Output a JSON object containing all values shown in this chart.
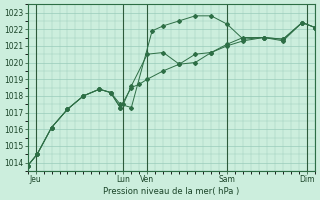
{
  "xlabel": "Pression niveau de la mer( hPa )",
  "bg_color": "#cceedd",
  "grid_color": "#99ccbb",
  "line_color": "#2d6e45",
  "ylim": [
    1013.5,
    1023.5
  ],
  "yticks": [
    1014,
    1015,
    1016,
    1017,
    1018,
    1019,
    1020,
    1021,
    1022,
    1023
  ],
  "xlim": [
    0,
    18
  ],
  "xtick_labels": [
    "Jeu",
    "Lun",
    "Ven",
    "Sam",
    "Dim"
  ],
  "xtick_positions": [
    0.5,
    6.0,
    7.5,
    12.5,
    17.5
  ],
  "vlines": [
    0.5,
    6.0,
    7.5,
    12.5,
    17.5
  ],
  "line1_x": [
    0.0,
    0.6,
    1.5,
    2.5,
    3.5,
    4.5,
    5.2,
    5.8,
    6.5,
    7.8,
    8.5,
    9.5,
    10.5,
    11.5,
    12.5,
    13.5,
    14.8,
    16.0,
    17.2,
    18.0
  ],
  "line1_y": [
    1013.8,
    1014.5,
    1016.1,
    1017.2,
    1018.0,
    1018.4,
    1018.2,
    1017.5,
    1017.3,
    1021.9,
    1022.2,
    1022.5,
    1022.8,
    1022.8,
    1022.3,
    1021.4,
    1021.5,
    1021.3,
    1022.4,
    1022.1
  ],
  "line2_x": [
    0.0,
    0.6,
    1.5,
    2.5,
    3.5,
    4.5,
    5.2,
    5.8,
    6.5,
    7.0,
    7.5,
    8.5,
    9.5,
    10.5,
    11.5,
    12.5,
    13.5,
    14.8,
    16.0,
    17.2,
    18.0
  ],
  "line2_y": [
    1013.8,
    1014.5,
    1016.1,
    1017.2,
    1018.0,
    1018.4,
    1018.2,
    1017.3,
    1018.5,
    1018.7,
    1019.0,
    1019.5,
    1019.9,
    1020.5,
    1020.6,
    1021.1,
    1021.5,
    1021.5,
    1021.4,
    1022.4,
    1022.1
  ],
  "line3_x": [
    0.0,
    0.6,
    1.5,
    2.5,
    3.5,
    4.5,
    5.2,
    5.8,
    6.0,
    6.5,
    7.5,
    8.5,
    9.5,
    10.5,
    11.5,
    12.5,
    13.5,
    14.8,
    16.0,
    17.2,
    18.0
  ],
  "line3_y": [
    1013.8,
    1014.5,
    1016.1,
    1017.2,
    1018.0,
    1018.4,
    1018.2,
    1017.3,
    1017.5,
    1018.6,
    1020.5,
    1020.6,
    1019.9,
    1020.0,
    1020.6,
    1021.0,
    1021.3,
    1021.5,
    1021.4,
    1022.4,
    1022.1
  ]
}
